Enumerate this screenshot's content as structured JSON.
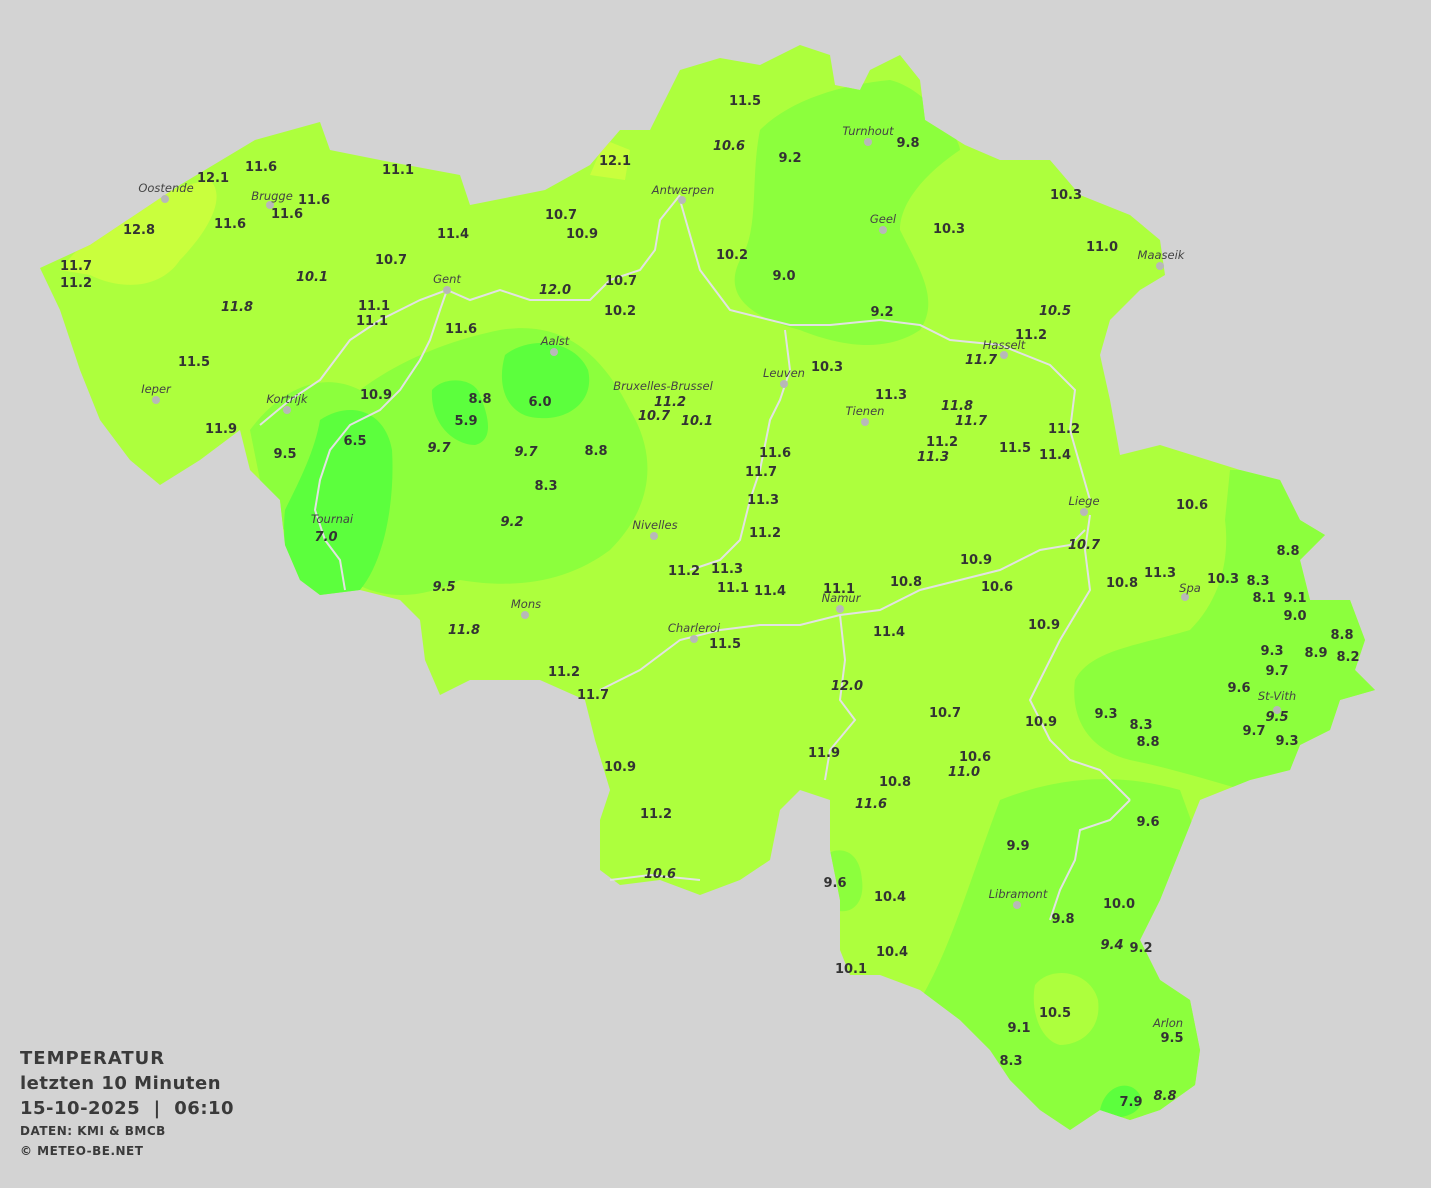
{
  "legend": {
    "title": "TEMPERATUR",
    "subtitle": "letzten 10 Minuten",
    "datetime": "15-10-2025  |  06:10",
    "source": "DATEN: KMI & BMCB",
    "copyright": "© METEO-BE.NET"
  },
  "colors": {
    "background": "#d3d3d3",
    "temp_11_12": "#adff3d",
    "temp_12_13": "#c9ff3d",
    "temp_8_10": "#8cff3d",
    "temp_6_8": "#5cff3d",
    "rivers": "#e0e0e0",
    "text": "#333333"
  },
  "cities": [
    "Turnhout",
    "Oostende",
    "Brugge",
    "Antwerpen",
    "Geel",
    "Maaseik",
    "Gent",
    "Hasselt",
    "Aalst",
    "Leuven",
    "Bruxelles-Brussel",
    "Ieper",
    "Kortrijk",
    "Tienen",
    "Liege",
    "Tournai",
    "Nivelles",
    "Spa",
    "Mons",
    "Namur",
    "Charleroi",
    "St-Vith",
    "Libramont",
    "Arlon"
  ],
  "stations": [
    {
      "v": "11.5"
    },
    {
      "v": "10.6",
      "i": true
    },
    {
      "v": "9.2"
    },
    {
      "v": "9.8"
    },
    {
      "v": "11.6"
    },
    {
      "v": "12.1"
    },
    {
      "v": "11.1"
    },
    {
      "v": "12.1"
    },
    {
      "v": "11.6"
    },
    {
      "v": "11.6"
    },
    {
      "v": "11.6"
    },
    {
      "v": "12.8"
    },
    {
      "v": "10.7"
    },
    {
      "v": "10.9"
    },
    {
      "v": "11.4"
    },
    {
      "v": "10.3"
    },
    {
      "v": "10.3"
    },
    {
      "v": "11.0"
    },
    {
      "v": "10.2"
    },
    {
      "v": "9.0"
    },
    {
      "v": "11.7"
    },
    {
      "v": "11.2"
    },
    {
      "v": "10.7"
    },
    {
      "v": "10.1",
      "i": true
    },
    {
      "v": "10.7"
    },
    {
      "v": "12.0",
      "i": true
    },
    {
      "v": "11.8",
      "i": true
    },
    {
      "v": "11.1"
    },
    {
      "v": "11.1"
    },
    {
      "v": "10.2"
    },
    {
      "v": "9.2"
    },
    {
      "v": "10.5",
      "i": true
    },
    {
      "v": "11.6"
    },
    {
      "v": "11.2"
    },
    {
      "v": "11.7",
      "i": true
    },
    {
      "v": "11.5"
    },
    {
      "v": "10.3"
    },
    {
      "v": "10.9"
    },
    {
      "v": "8.8"
    },
    {
      "v": "6.0"
    },
    {
      "v": "11.2",
      "i": true
    },
    {
      "v": "10.7",
      "i": true
    },
    {
      "v": "10.1",
      "i": true
    },
    {
      "v": "11.3"
    },
    {
      "v": "11.8",
      "i": true
    },
    {
      "v": "11.7",
      "i": true
    },
    {
      "v": "5.9"
    },
    {
      "v": "11.9"
    },
    {
      "v": "6.5"
    },
    {
      "v": "9.7",
      "i": true
    },
    {
      "v": "9.7",
      "i": true
    },
    {
      "v": "8.8"
    },
    {
      "v": "11.2"
    },
    {
      "v": "11.2"
    },
    {
      "v": "11.3",
      "i": true
    },
    {
      "v": "11.5"
    },
    {
      "v": "11.4"
    },
    {
      "v": "11.6"
    },
    {
      "v": "9.5"
    },
    {
      "v": "11.7"
    },
    {
      "v": "8.3"
    },
    {
      "v": "11.3"
    },
    {
      "v": "10.6"
    },
    {
      "v": "9.2",
      "i": true
    },
    {
      "v": "7.0",
      "i": true
    },
    {
      "v": "11.2"
    },
    {
      "v": "10.7",
      "i": true
    },
    {
      "v": "8.8"
    },
    {
      "v": "10.9"
    },
    {
      "v": "11.2"
    },
    {
      "v": "11.3"
    },
    {
      "v": "11.1"
    },
    {
      "v": "11.4"
    },
    {
      "v": "10.8"
    },
    {
      "v": "11.1"
    },
    {
      "v": "10.6"
    },
    {
      "v": "10.8"
    },
    {
      "v": "11.3"
    },
    {
      "v": "10.3"
    },
    {
      "v": "8.3"
    },
    {
      "v": "8.1"
    },
    {
      "v": "9.1"
    },
    {
      "v": "9.0"
    },
    {
      "v": "9.5",
      "i": true
    },
    {
      "v": "11.8",
      "i": true
    },
    {
      "v": "11.4"
    },
    {
      "v": "10.9"
    },
    {
      "v": "11.5"
    },
    {
      "v": "9.3"
    },
    {
      "v": "8.9"
    },
    {
      "v": "8.8"
    },
    {
      "v": "8.2"
    },
    {
      "v": "9.7"
    },
    {
      "v": "11.2"
    },
    {
      "v": "12.0",
      "i": true
    },
    {
      "v": "9.6"
    },
    {
      "v": "11.7"
    },
    {
      "v": "9.3"
    },
    {
      "v": "10.7"
    },
    {
      "v": "8.3"
    },
    {
      "v": "9.5",
      "i": true
    },
    {
      "v": "10.9"
    },
    {
      "v": "9.7"
    },
    {
      "v": "8.8"
    },
    {
      "v": "9.3"
    },
    {
      "v": "11.9"
    },
    {
      "v": "10.6"
    },
    {
      "v": "11.0",
      "i": true
    },
    {
      "v": "10.9"
    },
    {
      "v": "10.8"
    },
    {
      "v": "11.6",
      "i": true
    },
    {
      "v": "11.2"
    },
    {
      "v": "9.6"
    },
    {
      "v": "9.9"
    },
    {
      "v": "10.6",
      "i": true
    },
    {
      "v": "9.6"
    },
    {
      "v": "10.4"
    },
    {
      "v": "10.0"
    },
    {
      "v": "9.8"
    },
    {
      "v": "9.4",
      "i": true
    },
    {
      "v": "9.2"
    },
    {
      "v": "10.4"
    },
    {
      "v": "10.1"
    },
    {
      "v": "10.5"
    },
    {
      "v": "9.1"
    },
    {
      "v": "9.5"
    },
    {
      "v": "8.3"
    },
    {
      "v": "8.8",
      "i": true
    },
    {
      "v": "7.9"
    }
  ]
}
